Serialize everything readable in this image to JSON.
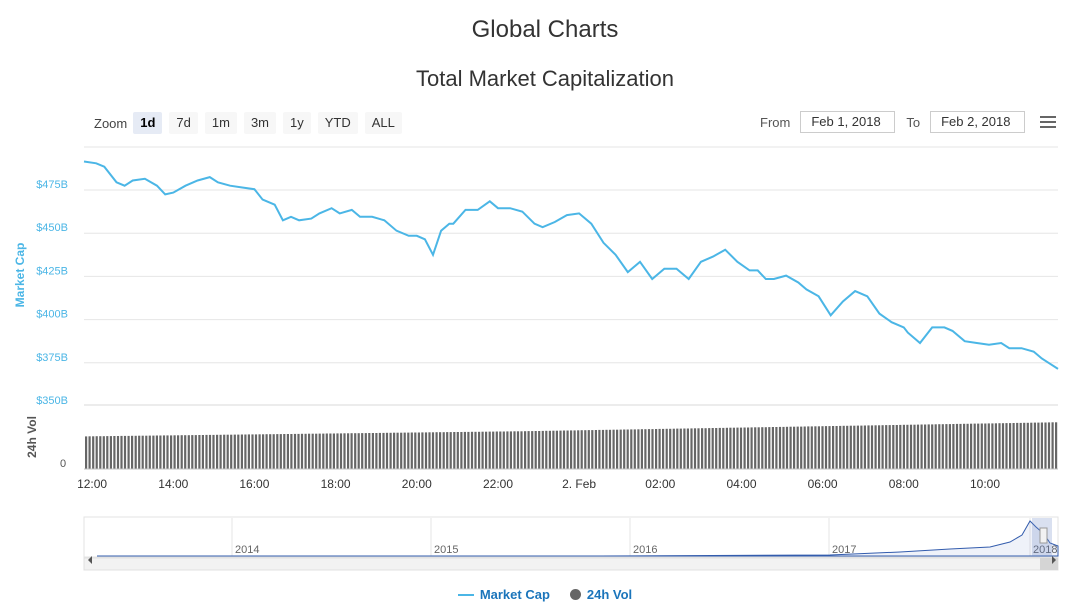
{
  "page_title": "Global Charts",
  "chart_title": "Total Market Capitalization",
  "zoom": {
    "label": "Zoom",
    "buttons": [
      "1d",
      "7d",
      "1m",
      "3m",
      "1y",
      "YTD",
      "ALL"
    ],
    "active": "1d"
  },
  "range": {
    "from_label": "From",
    "from_value": "Feb 1, 2018",
    "to_label": "To",
    "to_value": "Feb 2, 2018"
  },
  "menu_icon": "hamburger-menu-icon",
  "colors": {
    "market_cap": "#4bb6e6",
    "volume": "#666666",
    "legend_text": "#1b75bb"
  },
  "chart_data": {
    "type": "line",
    "x_tick_labels": [
      "12:00",
      "14:00",
      "16:00",
      "18:00",
      "20:00",
      "22:00",
      "2. Feb",
      "02:00",
      "04:00",
      "06:00",
      "08:00",
      "10:00"
    ],
    "x_range_hours": [
      11.8,
      35.8
    ],
    "y_axis": {
      "label": "Market Cap",
      "tick_labels": [
        "$475B",
        "$450B",
        "$425B",
        "$400B",
        "$375B",
        "$350B"
      ],
      "ticks": [
        475,
        450,
        425,
        400,
        375,
        350
      ]
    },
    "volume_axis": {
      "label": "24h Vol",
      "tick_labels": [
        "0"
      ]
    },
    "series": [
      {
        "name": "Market Cap",
        "x_hours": [
          11.8,
          12.1,
          12.3,
          12.6,
          12.8,
          13.0,
          13.3,
          13.6,
          13.8,
          14.0,
          14.3,
          14.6,
          14.9,
          15.1,
          15.4,
          15.7,
          16.0,
          16.2,
          16.5,
          16.7,
          16.9,
          17.1,
          17.4,
          17.6,
          17.9,
          18.1,
          18.4,
          18.6,
          18.9,
          19.2,
          19.5,
          19.8,
          20.0,
          20.2,
          20.4,
          20.6,
          20.8,
          20.9,
          21.2,
          21.5,
          21.8,
          22.0,
          22.3,
          22.6,
          22.9,
          23.1,
          23.4,
          23.7,
          24.0,
          24.3,
          24.6,
          24.9,
          25.2,
          25.5,
          25.8,
          26.1,
          26.4,
          26.7,
          27.0,
          27.3,
          27.6,
          27.9,
          28.2,
          28.4,
          28.6,
          28.8,
          29.1,
          29.4,
          29.6,
          29.9,
          30.2,
          30.5,
          30.8,
          31.1,
          31.4,
          31.7,
          32.0,
          32.1,
          32.4,
          32.7,
          33.0,
          33.2,
          33.5,
          33.8,
          34.1,
          34.4,
          34.6,
          34.9,
          35.2,
          35.4,
          35.6,
          35.8
        ],
        "values": [
          488,
          487,
          485,
          476,
          474,
          477,
          478,
          474,
          469,
          470,
          474,
          477,
          479,
          476,
          474,
          473,
          472,
          466,
          463,
          454,
          456,
          454,
          455,
          458,
          461,
          458,
          460,
          456,
          456,
          454,
          448,
          445,
          445,
          443,
          434,
          448,
          452,
          452,
          460,
          460,
          465,
          461,
          461,
          459,
          452,
          450,
          453,
          457,
          458,
          452,
          441,
          434,
          424,
          430,
          420,
          426,
          426,
          420,
          430,
          433,
          437,
          430,
          425,
          425,
          420,
          420,
          422,
          418,
          414,
          410,
          399,
          407,
          413,
          410,
          400,
          395,
          392,
          389,
          383,
          392,
          392,
          390,
          384,
          383,
          382,
          383,
          380,
          380,
          378,
          374,
          371,
          368
        ]
      },
      {
        "name": "24h Vol",
        "type": "bar",
        "bar_count": 275,
        "relative_levels": {
          "start": 0.51,
          "mid": 0.59,
          "end": 0.73
        }
      }
    ],
    "navigator": {
      "year_labels": [
        "2014",
        "2015",
        "2016",
        "2017",
        "2018"
      ]
    },
    "legend": [
      "Market Cap",
      "24h Vol"
    ]
  }
}
